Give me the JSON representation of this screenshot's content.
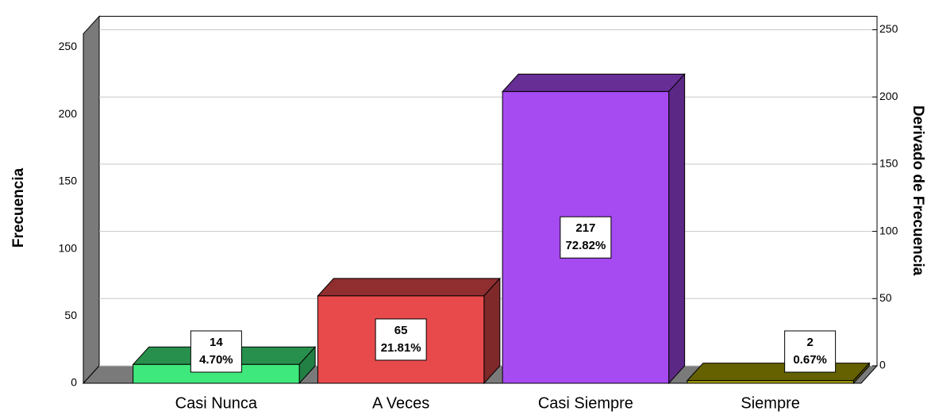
{
  "chart_data": {
    "type": "bar3d",
    "y_label": "Frecuencia",
    "y2_label": "Derivado de Frecuencia",
    "categories": [
      "Casi Nunca",
      "A Veces",
      "Casi Siempre",
      "Siempre"
    ],
    "values": [
      14,
      65,
      217,
      2
    ],
    "percent_values": [
      4.7,
      21.81,
      72.82,
      0.67
    ],
    "percent_labels": [
      "4.70%",
      "21.81%",
      "72.82%",
      "0.67%"
    ],
    "colors": [
      "#3fe87c",
      "#e84a4c",
      "#a64af2",
      "#a39c00"
    ],
    "ylim": [
      0,
      260
    ],
    "yticks": [
      0,
      50,
      100,
      150,
      200,
      250
    ],
    "y2lim": [
      0,
      260
    ],
    "y2ticks": [
      0,
      50,
      100,
      150,
      200,
      250
    ],
    "grid": true
  }
}
